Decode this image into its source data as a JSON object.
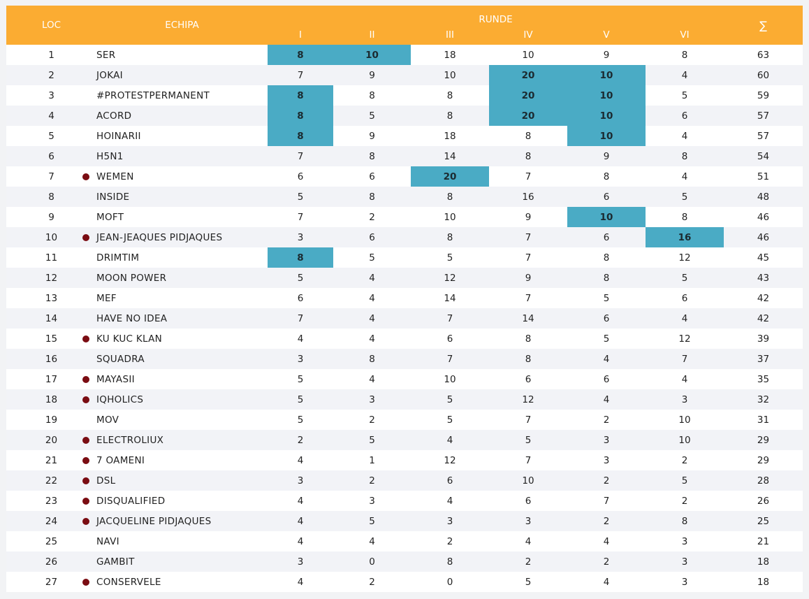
{
  "header": {
    "loc": "LOC",
    "team": "ECHIPA",
    "rounds_title": "RUNDE",
    "rounds": [
      "I",
      "II",
      "III",
      "IV",
      "V",
      "VI"
    ],
    "sum": "∑"
  },
  "colors": {
    "header_bg": "#fbac32",
    "highlight": "#4aabc5",
    "marker_dot": "#7a0c12",
    "row_alt": "#f2f3f7"
  },
  "rows": [
    {
      "loc": "1",
      "team": "SER",
      "dot": false,
      "scores": [
        "8",
        "10",
        "18",
        "10",
        "9",
        "8"
      ],
      "sum": "63",
      "highlight": [
        0,
        1
      ]
    },
    {
      "loc": "2",
      "team": "JOKAI",
      "dot": false,
      "scores": [
        "7",
        "9",
        "10",
        "20",
        "10",
        "4"
      ],
      "sum": "60",
      "highlight": [
        3,
        4
      ]
    },
    {
      "loc": "3",
      "team": "#PROTESTPERMANENT",
      "dot": false,
      "scores": [
        "8",
        "8",
        "8",
        "20",
        "10",
        "5"
      ],
      "sum": "59",
      "highlight": [
        0,
        3,
        4
      ]
    },
    {
      "loc": "4",
      "team": "ACORD",
      "dot": false,
      "scores": [
        "8",
        "5",
        "8",
        "20",
        "10",
        "6"
      ],
      "sum": "57",
      "highlight": [
        0,
        3,
        4
      ]
    },
    {
      "loc": "5",
      "team": "HOINARII",
      "dot": false,
      "scores": [
        "8",
        "9",
        "18",
        "8",
        "10",
        "4"
      ],
      "sum": "57",
      "highlight": [
        0,
        4
      ]
    },
    {
      "loc": "6",
      "team": "H5N1",
      "dot": false,
      "scores": [
        "7",
        "8",
        "14",
        "8",
        "9",
        "8"
      ],
      "sum": "54",
      "highlight": []
    },
    {
      "loc": "7",
      "team": "WEMEN",
      "dot": true,
      "scores": [
        "6",
        "6",
        "20",
        "7",
        "8",
        "4"
      ],
      "sum": "51",
      "highlight": [
        2
      ]
    },
    {
      "loc": "8",
      "team": "INSIDE",
      "dot": false,
      "scores": [
        "5",
        "8",
        "8",
        "16",
        "6",
        "5"
      ],
      "sum": "48",
      "highlight": []
    },
    {
      "loc": "9",
      "team": "MOFT",
      "dot": false,
      "scores": [
        "7",
        "2",
        "10",
        "9",
        "10",
        "8"
      ],
      "sum": "46",
      "highlight": [
        4
      ]
    },
    {
      "loc": "10",
      "team": "JEAN-JEAQUES PIDJAQUES",
      "dot": true,
      "scores": [
        "3",
        "6",
        "8",
        "7",
        "6",
        "16"
      ],
      "sum": "46",
      "highlight": [
        5
      ]
    },
    {
      "loc": "11",
      "team": "DRIMTIM",
      "dot": false,
      "scores": [
        "8",
        "5",
        "5",
        "7",
        "8",
        "12"
      ],
      "sum": "45",
      "highlight": [
        0
      ]
    },
    {
      "loc": "12",
      "team": "MOON POWER",
      "dot": false,
      "scores": [
        "5",
        "4",
        "12",
        "9",
        "8",
        "5"
      ],
      "sum": "43",
      "highlight": []
    },
    {
      "loc": "13",
      "team": "MEF",
      "dot": false,
      "scores": [
        "6",
        "4",
        "14",
        "7",
        "5",
        "6"
      ],
      "sum": "42",
      "highlight": []
    },
    {
      "loc": "14",
      "team": "HAVE NO IDEA",
      "dot": false,
      "scores": [
        "7",
        "4",
        "7",
        "14",
        "6",
        "4"
      ],
      "sum": "42",
      "highlight": []
    },
    {
      "loc": "15",
      "team": "KU KUC KLAN",
      "dot": true,
      "scores": [
        "4",
        "4",
        "6",
        "8",
        "5",
        "12"
      ],
      "sum": "39",
      "highlight": []
    },
    {
      "loc": "16",
      "team": "SQUADRA",
      "dot": false,
      "scores": [
        "3",
        "8",
        "7",
        "8",
        "4",
        "7"
      ],
      "sum": "37",
      "highlight": []
    },
    {
      "loc": "17",
      "team": "MAYASII",
      "dot": true,
      "scores": [
        "5",
        "4",
        "10",
        "6",
        "6",
        "4"
      ],
      "sum": "35",
      "highlight": []
    },
    {
      "loc": "18",
      "team": "IQHOLICS",
      "dot": true,
      "scores": [
        "5",
        "3",
        "5",
        "12",
        "4",
        "3"
      ],
      "sum": "32",
      "highlight": []
    },
    {
      "loc": "19",
      "team": "MOV",
      "dot": false,
      "scores": [
        "5",
        "2",
        "5",
        "7",
        "2",
        "10"
      ],
      "sum": "31",
      "highlight": []
    },
    {
      "loc": "20",
      "team": "ELECTROLIUX",
      "dot": true,
      "scores": [
        "2",
        "5",
        "4",
        "5",
        "3",
        "10"
      ],
      "sum": "29",
      "highlight": []
    },
    {
      "loc": "21",
      "team": "7 OAMENI",
      "dot": true,
      "scores": [
        "4",
        "1",
        "12",
        "7",
        "3",
        "2"
      ],
      "sum": "29",
      "highlight": []
    },
    {
      "loc": "22",
      "team": "DSL",
      "dot": true,
      "scores": [
        "3",
        "2",
        "6",
        "10",
        "2",
        "5"
      ],
      "sum": "28",
      "highlight": []
    },
    {
      "loc": "23",
      "team": "DISQUALIFIED",
      "dot": true,
      "scores": [
        "4",
        "3",
        "4",
        "6",
        "7",
        "2"
      ],
      "sum": "26",
      "highlight": []
    },
    {
      "loc": "24",
      "team": "JACQUELINE PIDJAQUES",
      "dot": true,
      "scores": [
        "4",
        "5",
        "3",
        "3",
        "2",
        "8"
      ],
      "sum": "25",
      "highlight": []
    },
    {
      "loc": "25",
      "team": "NAVI",
      "dot": false,
      "scores": [
        "4",
        "4",
        "2",
        "4",
        "4",
        "3"
      ],
      "sum": "21",
      "highlight": []
    },
    {
      "loc": "26",
      "team": "GAMBIT",
      "dot": false,
      "scores": [
        "3",
        "0",
        "8",
        "2",
        "2",
        "3"
      ],
      "sum": "18",
      "highlight": []
    },
    {
      "loc": "27",
      "team": "CONSERVELE",
      "dot": true,
      "scores": [
        "4",
        "2",
        "0",
        "5",
        "4",
        "3"
      ],
      "sum": "18",
      "highlight": []
    }
  ]
}
